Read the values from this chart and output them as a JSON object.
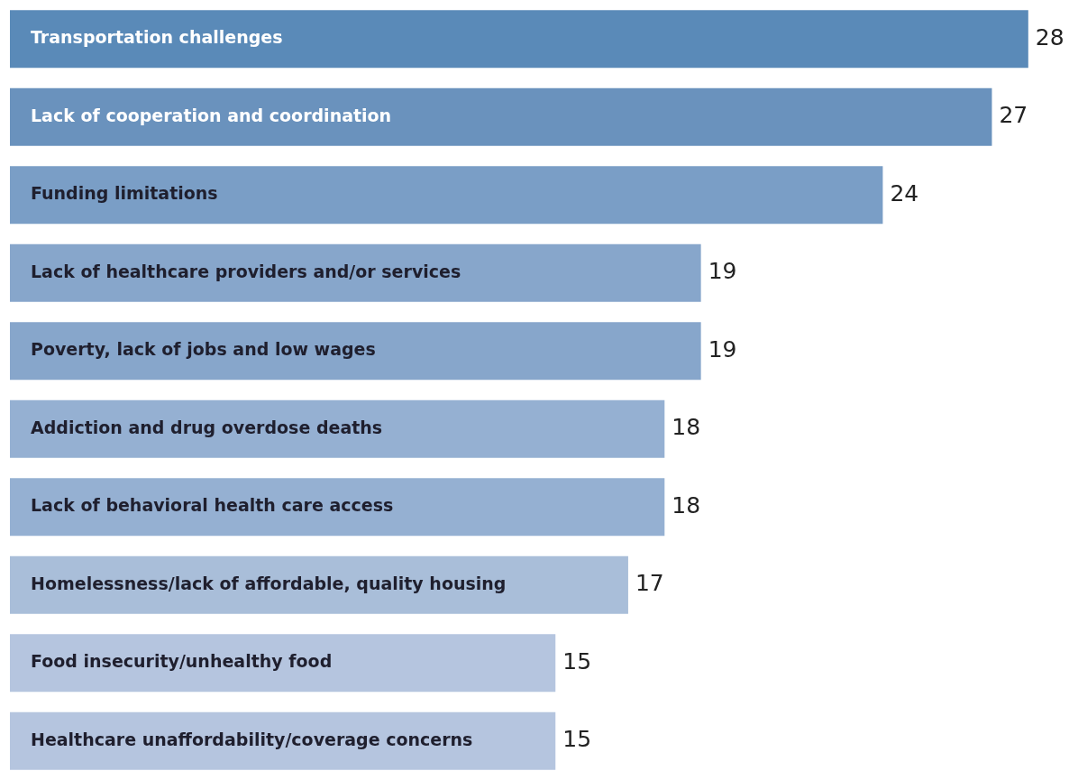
{
  "chart_data": {
    "type": "bar",
    "orientation": "horizontal",
    "data_labels": true,
    "categories": [
      "Transportation challenges",
      "Lack of cooperation and coordination",
      "Funding limitations",
      "Lack of healthcare providers and/or services",
      "Poverty, lack of jobs and low wages",
      "Addiction and drug overdose deaths",
      "Lack of behavioral health care access",
      "Homelessness/lack of affordable, quality housing",
      "Food insecurity/unhealthy food",
      "Healthcare unaffordability/coverage concerns"
    ],
    "values": [
      28,
      27,
      24,
      19,
      19,
      18,
      18,
      17,
      15,
      15
    ],
    "colors": [
      "#5a8ab8",
      "#6a92bd",
      "#7a9ec6",
      "#87a6cb",
      "#87a6cb",
      "#95b0d2",
      "#95b0d2",
      "#a9bed9",
      "#b5c5df",
      "#b5c5df"
    ]
  }
}
